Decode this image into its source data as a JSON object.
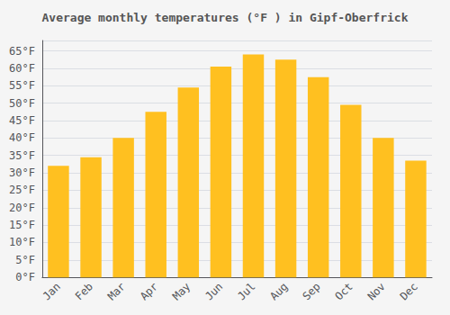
{
  "chart_data": {
    "type": "bar",
    "title": "Average monthly temperatures (°F ) in Gipf-Oberfrick",
    "categories": [
      "Jan",
      "Feb",
      "Mar",
      "Apr",
      "May",
      "Jun",
      "Jul",
      "Aug",
      "Sep",
      "Oct",
      "Nov",
      "Dec"
    ],
    "values": [
      32,
      34.5,
      40,
      47.5,
      54.5,
      60.5,
      64,
      62.5,
      57.5,
      49.5,
      40,
      33.5
    ],
    "color": "#FFC020",
    "ylim": [
      0,
      68
    ],
    "yticks": [
      {
        "value": 0,
        "label": "0°F"
      },
      {
        "value": 5,
        "label": "5°F"
      },
      {
        "value": 10,
        "label": "10°F"
      },
      {
        "value": 15,
        "label": "15°F"
      },
      {
        "value": 20,
        "label": "20°F"
      },
      {
        "value": 25,
        "label": "25°F"
      },
      {
        "value": 30,
        "label": "30°F"
      },
      {
        "value": 35,
        "label": "35°F"
      },
      {
        "value": 40,
        "label": "40°F"
      },
      {
        "value": 45,
        "label": "45°F"
      },
      {
        "value": 50,
        "label": "50°F"
      },
      {
        "value": 55,
        "label": "55°F"
      },
      {
        "value": 60,
        "label": "60°F"
      },
      {
        "value": 65,
        "label": "65°F"
      }
    ],
    "grid": true
  }
}
